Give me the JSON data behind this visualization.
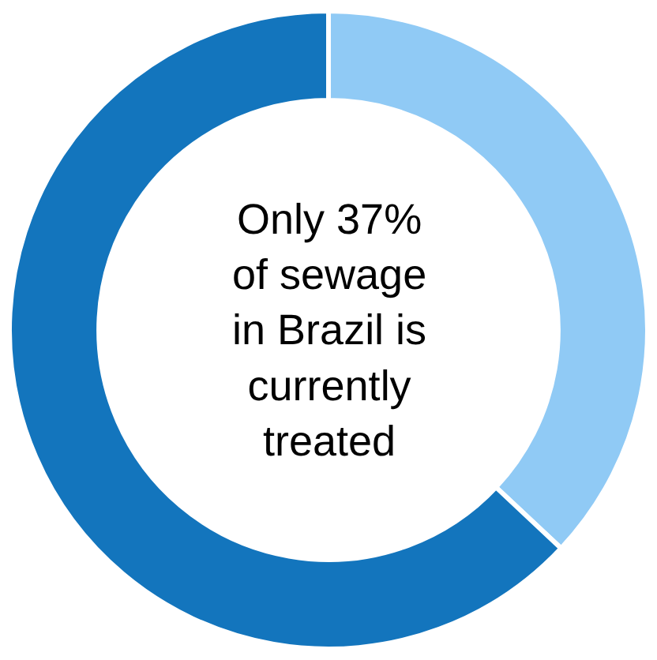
{
  "chart_data": {
    "type": "donut",
    "categories": [
      null,
      null
    ],
    "values": [
      37,
      63
    ],
    "colors": [
      "#90caf5",
      "#1375bd"
    ],
    "annotations": [
      "Only 37%\nof sewage\nin Brazil is\ncurrently\ntreated"
    ],
    "legend": false
  }
}
